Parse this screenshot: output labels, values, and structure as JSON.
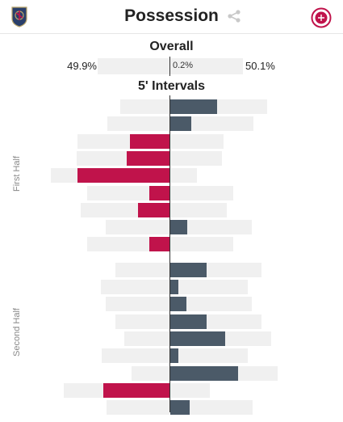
{
  "header": {
    "title": "Possession",
    "home_logo": "real-salt-lake-crest",
    "away_logo": "toronto-fc-crest",
    "share_icon": "share-icon"
  },
  "colors": {
    "home": "#c0134b",
    "away": "#4b5a68",
    "track": "#f0f0f0"
  },
  "overall": {
    "title": "Overall",
    "home_pct": "49.9%",
    "away_pct": "50.1%",
    "diff": "0.2%"
  },
  "intervals": {
    "title": "5' Intervals",
    "first_half_label": "First Half",
    "second_half_label": "Second Half"
  },
  "chart_data": {
    "type": "bar",
    "description_unit": "possession differential percentage points per 5-minute interval (negative = home, positive = away)",
    "first_half": [
      {
        "home_track": 61,
        "away_track": 120,
        "diff": 58
      },
      {
        "home_track": 77,
        "away_track": 103,
        "diff": 26
      },
      {
        "home_track": 114,
        "away_track": 66,
        "diff": -49
      },
      {
        "home_track": 115,
        "away_track": 64,
        "diff": -53
      },
      {
        "home_track": 147,
        "away_track": 33,
        "diff": -114
      },
      {
        "home_track": 102,
        "away_track": 78,
        "diff": -25
      },
      {
        "home_track": 110,
        "away_track": 70,
        "diff": -39
      },
      {
        "home_track": 79,
        "away_track": 101,
        "diff": 21
      },
      {
        "home_track": 102,
        "away_track": 78,
        "diff": -25
      }
    ],
    "second_half": [
      {
        "home_track": 67,
        "away_track": 113,
        "diff": 45
      },
      {
        "home_track": 85,
        "away_track": 96,
        "diff": 10
      },
      {
        "home_track": 79,
        "away_track": 101,
        "diff": 20
      },
      {
        "home_track": 67,
        "away_track": 113,
        "diff": 45
      },
      {
        "home_track": 56,
        "away_track": 125,
        "diff": 68
      },
      {
        "home_track": 84,
        "away_track": 96,
        "diff": 10
      },
      {
        "home_track": 47,
        "away_track": 133,
        "diff": 84
      },
      {
        "home_track": 131,
        "away_track": 49,
        "diff": -82
      },
      {
        "home_track": 78,
        "away_track": 102,
        "diff": 24
      }
    ]
  }
}
